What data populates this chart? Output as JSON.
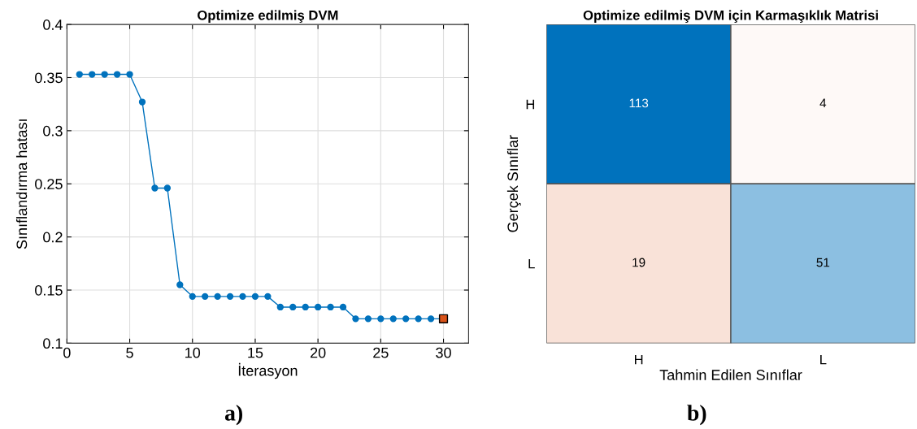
{
  "chart_data": [
    {
      "type": "line",
      "title": "Optimize edilmiş DVM",
      "xlabel": "İterasyon",
      "ylabel": "Sınıflandırma hatası",
      "series": [
        {
          "type": "line",
          "color": "#0072bd",
          "marker": "circle",
          "x": [
            1,
            2,
            3,
            4,
            5,
            6,
            7,
            8,
            9,
            10,
            11,
            12,
            13,
            14,
            15,
            16,
            17,
            18,
            19,
            20,
            21,
            22,
            23,
            24,
            25,
            26,
            27,
            28,
            29,
            30
          ],
          "values": [
            0.353,
            0.353,
            0.353,
            0.353,
            0.353,
            0.327,
            0.246,
            0.246,
            0.155,
            0.144,
            0.144,
            0.144,
            0.144,
            0.144,
            0.144,
            0.144,
            0.134,
            0.134,
            0.134,
            0.134,
            0.134,
            0.134,
            0.123,
            0.123,
            0.123,
            0.123,
            0.123,
            0.123,
            0.123,
            0.123
          ]
        },
        {
          "type": "scatter",
          "color": "#d95319",
          "marker": "square",
          "x": [
            30
          ],
          "values": [
            0.123
          ]
        }
      ],
      "xlim": [
        0,
        32
      ],
      "xticks": [
        0,
        5,
        10,
        15,
        20,
        25,
        30
      ],
      "ylim": [
        0.1,
        0.4
      ],
      "yticks": [
        0.1,
        0.15,
        0.2,
        0.25,
        0.3,
        0.35,
        0.4
      ],
      "grid": true,
      "annotations": [
        "a)"
      ]
    },
    {
      "type": "heatmap",
      "title": "Optimize edilmiş DVM için Karmaşıklık Matrisi",
      "xlabel": "Tahmin Edilen Sınıflar",
      "ylabel": "Gerçek Sınıflar",
      "categories": [
        "H",
        "L"
      ],
      "y_categories": [
        "H",
        "L"
      ],
      "cells": [
        [
          113,
          4
        ],
        [
          19,
          51
        ]
      ],
      "data_labels": true,
      "annotations": [
        "b)"
      ]
    }
  ]
}
